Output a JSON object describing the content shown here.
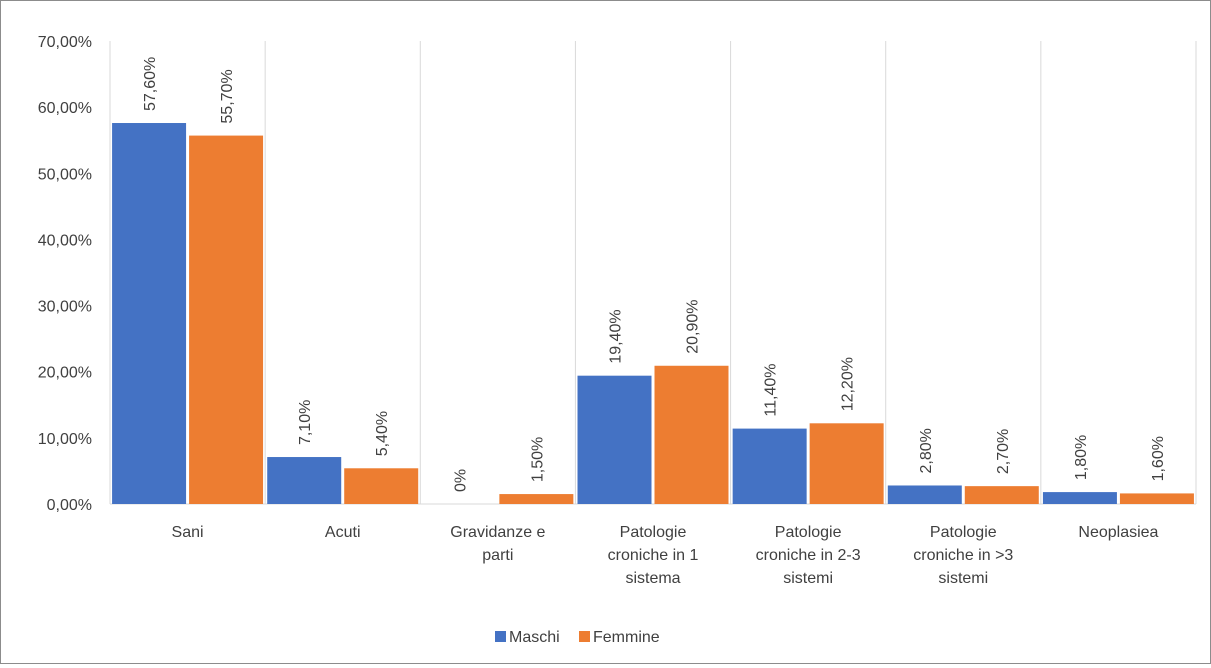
{
  "chart_data": {
    "type": "bar",
    "title": "",
    "xlabel": "",
    "ylabel": "",
    "ylim": [
      0,
      70
    ],
    "y_ticks": [
      "0,00%",
      "10,00%",
      "20,00%",
      "30,00%",
      "40,00%",
      "50,00%",
      "60,00%",
      "70,00%"
    ],
    "y_tick_values": [
      0,
      10,
      20,
      30,
      40,
      50,
      60,
      70
    ],
    "grid": "vertical separators between categories",
    "legend_position": "bottom",
    "categories": [
      [
        "Sani"
      ],
      [
        "Acuti"
      ],
      [
        "Gravidanze e",
        "parti"
      ],
      [
        "Patologie",
        "croniche in 1",
        "sistema"
      ],
      [
        "Patologie",
        "croniche in 2-3",
        "sistemi"
      ],
      [
        "Patologie",
        "croniche in >3",
        "sistemi"
      ],
      [
        "Neoplasiea"
      ]
    ],
    "series": [
      {
        "name": "Maschi",
        "color": "#4472C4",
        "values": [
          57.6,
          7.1,
          0,
          19.4,
          11.4,
          2.8,
          1.8
        ],
        "labels": [
          "57,60%",
          "7,10%",
          "0%",
          "19,40%",
          "11,40%",
          "2,80%",
          "1,80%"
        ]
      },
      {
        "name": "Femmine",
        "color": "#ED7D31",
        "values": [
          55.7,
          5.4,
          1.5,
          20.9,
          12.2,
          2.7,
          1.6
        ],
        "labels": [
          "55,70%",
          "5,40%",
          "1,50%",
          "20,90%",
          "12,20%",
          "2,70%",
          "1,60%"
        ]
      }
    ]
  }
}
